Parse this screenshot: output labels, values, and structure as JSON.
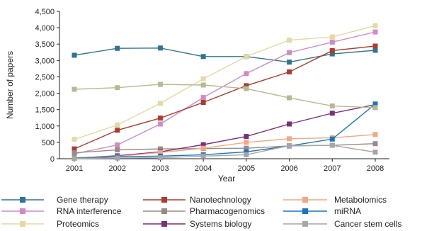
{
  "chart_data": {
    "type": "line",
    "xlabel": "Year",
    "ylabel": "Number of papers",
    "ylim": [
      0,
      4500
    ],
    "yticks": [
      0,
      500,
      1000,
      1500,
      2000,
      2500,
      3000,
      3500,
      4000,
      4500
    ],
    "ytick_labels": [
      "0",
      "500",
      "1,000",
      "1,500",
      "2,000",
      "2,500",
      "3,000",
      "3,500",
      "4,000",
      "4,500"
    ],
    "x": [
      "2001",
      "2002",
      "2003",
      "2004",
      "2005",
      "2006",
      "2007",
      "2008"
    ],
    "grid": false,
    "legend_position": "bottom",
    "series": [
      {
        "name": "Gene therapy",
        "color": "#2f7590",
        "values": [
          3160,
          3370,
          3380,
          3120,
          3120,
          2950,
          3200,
          3310
        ]
      },
      {
        "name": "RNA interference",
        "color": "#d08ac6",
        "values": [
          150,
          420,
          1060,
          1870,
          2600,
          3240,
          3560,
          3870
        ]
      },
      {
        "name": "Proteomics",
        "color": "#e4d9a4",
        "values": [
          590,
          1030,
          1690,
          2440,
          3120,
          3620,
          3720,
          4060
        ]
      },
      {
        "name": "Nanotechnology",
        "color": "#b03a2e",
        "values": [
          300,
          870,
          1240,
          1720,
          2230,
          2650,
          3300,
          3440
        ]
      },
      {
        "name": "Pharmacogenomics",
        "color": "#9b8a86",
        "values": [
          180,
          270,
          300,
          310,
          320,
          390,
          410,
          460
        ]
      },
      {
        "name": "Systems biology",
        "color": "#7a2f7a",
        "values": [
          20,
          90,
          210,
          430,
          680,
          1060,
          1390,
          1650
        ]
      },
      {
        "name": "Metabolomics",
        "color": "#f4a784",
        "values": [
          30,
          70,
          190,
          320,
          500,
          610,
          640,
          740
        ]
      },
      {
        "name": "miRNA",
        "color": "#1a75c2",
        "values": [
          20,
          60,
          80,
          120,
          210,
          390,
          600,
          1670
        ]
      },
      {
        "name": "Cancer stem cells",
        "color": "#a6a6a6",
        "values": [
          10,
          20,
          30,
          80,
          120,
          400,
          410,
          200
        ]
      },
      {
        "name": "",
        "color": "#b8b991",
        "values": [
          2120,
          2170,
          2270,
          2250,
          2140,
          1860,
          1610,
          1560
        ]
      }
    ]
  }
}
